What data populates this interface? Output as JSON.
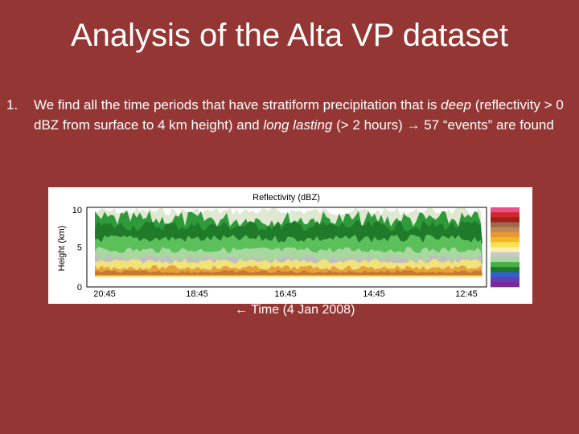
{
  "title": "Analysis of the Alta VP dataset",
  "list": [
    {
      "number": "1.",
      "segments": [
        {
          "text": "We find all the time periods that have stratiform precipitation that is ",
          "italic": false
        },
        {
          "text": "deep",
          "italic": true
        },
        {
          "text": " (reflectivity > 0 dBZ from surface to 4 km height) and ",
          "italic": false
        },
        {
          "text": "long lasting",
          "italic": true
        },
        {
          "text": " (> 2 hours) → 57 “events” are found",
          "italic": false
        }
      ]
    }
  ],
  "figure": {
    "title": "Reflectivity (dBZ)",
    "y_label": "Height (km)",
    "y_ticks": [
      "10",
      "5",
      "0"
    ],
    "x_ticks": [
      "20:45",
      "18:45",
      "16:45",
      "14:45",
      "12:45"
    ],
    "caption": "← Time (4 Jan 2008)"
  }
}
